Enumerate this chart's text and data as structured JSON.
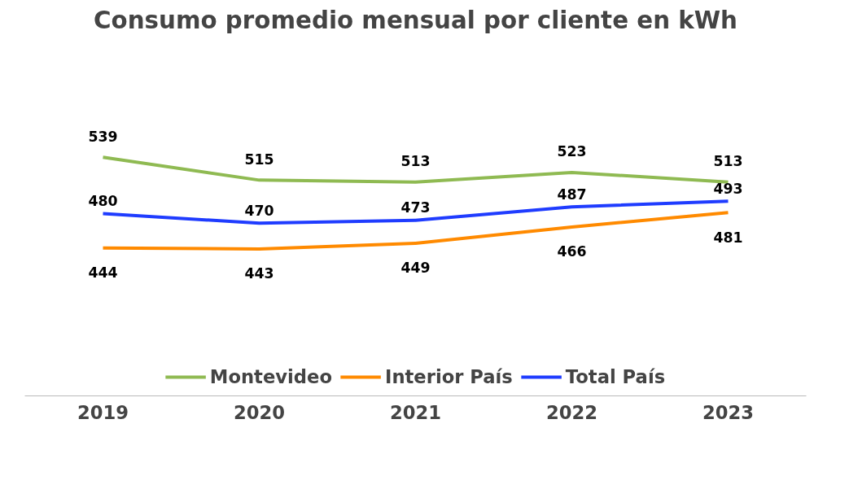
{
  "chart_data": {
    "type": "line",
    "title": "Consumo promedio mensual por cliente en kWh",
    "categories": [
      "2019",
      "2020",
      "2021",
      "2022",
      "2023"
    ],
    "series": [
      {
        "name": "Montevideo",
        "color": "#8fba52",
        "values": [
          539,
          515,
          513,
          523,
          513
        ]
      },
      {
        "name": "Interior País",
        "color": "#ff8a00",
        "values": [
          444,
          443,
          449,
          466,
          481
        ]
      },
      {
        "name": "Total País",
        "color": "#1f3cff",
        "values": [
          480,
          470,
          473,
          487,
          493
        ]
      }
    ],
    "data_labels": true,
    "legend": "bottom",
    "grid": false,
    "marker": "none",
    "line_style": "solid"
  }
}
